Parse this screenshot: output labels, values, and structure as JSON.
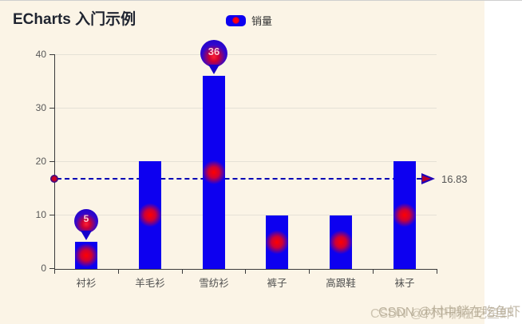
{
  "header": {
    "title": "ECharts 入门示例"
  },
  "legend": {
    "position": "top-center",
    "items": [
      {
        "label": "销量",
        "icon": "rounded-rect-with-red-dot",
        "color": "#0d00f0",
        "dot_color": "#ff0010"
      }
    ]
  },
  "chart_data": {
    "type": "bar",
    "title": "ECharts 入门示例",
    "categories": [
      "衬衫",
      "羊毛衫",
      "雪纺衫",
      "裤子",
      "高跟鞋",
      "袜子"
    ],
    "series": [
      {
        "name": "销量",
        "values": [
          5,
          20,
          36,
          10,
          10,
          20
        ]
      }
    ],
    "xlabel": "",
    "ylabel": "",
    "y_ticks": [
      0,
      10,
      20,
      30,
      40
    ],
    "ylim": [
      0,
      40
    ],
    "grid": true,
    "legend_position": "top-center",
    "markpoints": [
      {
        "type": "max",
        "value": 36,
        "category": "雪纺衫",
        "shape": "pin"
      },
      {
        "type": "min",
        "value": 5,
        "category": "衬衫",
        "shape": "pin"
      }
    ],
    "markline": {
      "type": "average",
      "value": 16.83,
      "label": "16.83",
      "style": "dashed",
      "arrow": "right"
    },
    "colors": {
      "bar": "#0d00f0",
      "bar_core": "#ff0010",
      "markline": "#0000b4",
      "axis": "#3a3a3a",
      "grid_line": "#e5e1d6",
      "canvas_bg": "#fbf4e6",
      "title": "#1f2430",
      "tick_label": "#555555"
    }
  },
  "watermark": {
    "text": "CSDN @村中躺在吃鱼虾",
    "style": "double-printed"
  }
}
